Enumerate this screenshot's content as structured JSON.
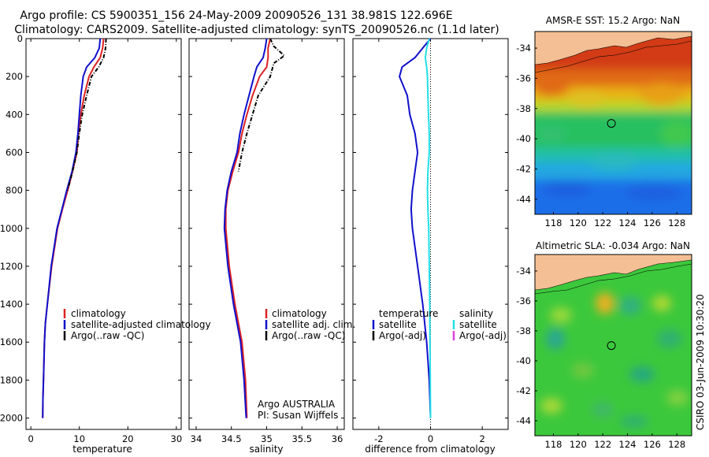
{
  "header": {
    "line1": "Argo profile: CS 5900351_156 24-May-2009 20090526_131 38.981S 122.696E",
    "line2": "Climatology: CARS2009. Satellite-adjusted climatology: synTS_20090526.nc (1.1d later)"
  },
  "colors": {
    "climatology": "#dd2222",
    "satellite": "#1010cc",
    "argo": "#000000",
    "satellite_salinity": "#22e0e8",
    "argo_salinity_adj": "#e040e0",
    "land": "#f4bf95"
  },
  "chart_data": [
    {
      "type": "line",
      "id": "temperature-profile",
      "xlabel": "temperature",
      "ylabel": "",
      "xlim": [
        -1,
        31
      ],
      "ylim": [
        2060,
        0
      ],
      "xticks": [
        0,
        10,
        20,
        30
      ],
      "yticks": [
        0,
        200,
        400,
        600,
        800,
        1000,
        1200,
        1400,
        1600,
        1800,
        2000
      ],
      "legend": [
        "climatology",
        "satellite-adjusted climatology",
        "Argo(..raw -QC)"
      ],
      "legend_position": "bottom-right",
      "series": [
        {
          "name": "climatology",
          "color_key": "climatology",
          "dash": false,
          "x": [
            15.0,
            14.8,
            14.3,
            13.0,
            12.0,
            11.0,
            10.3,
            9.8,
            9.5,
            8.6,
            7.6,
            6.5,
            5.5,
            4.3,
            3.4,
            3.0,
            2.8,
            2.6,
            2.5,
            2.45
          ],
          "y": [
            0,
            50,
            100,
            150,
            200,
            300,
            400,
            500,
            600,
            700,
            800,
            900,
            1000,
            1200,
            1400,
            1500,
            1600,
            1800,
            1900,
            2000
          ]
        },
        {
          "name": "satellite-adjusted climatology",
          "color_key": "satellite",
          "dash": false,
          "x": [
            14.3,
            14.1,
            13.2,
            11.5,
            10.8,
            10.3,
            10.0,
            9.7,
            9.3,
            8.5,
            7.4,
            6.4,
            5.4,
            4.2,
            3.4,
            3.0,
            2.8,
            2.6,
            2.5,
            2.45
          ],
          "y": [
            0,
            50,
            100,
            150,
            200,
            300,
            400,
            500,
            600,
            700,
            800,
            900,
            1000,
            1200,
            1400,
            1500,
            1600,
            1800,
            1900,
            2000
          ]
        },
        {
          "name": "Argo(..raw -QC)",
          "color_key": "argo",
          "dash": true,
          "x": [
            15.5,
            15.4,
            15.0,
            14.0,
            12.5,
            11.5,
            10.6,
            10.0,
            9.5,
            8.6,
            7.6
          ],
          "y": [
            0,
            50,
            100,
            150,
            200,
            300,
            400,
            500,
            600,
            700,
            800
          ]
        }
      ]
    },
    {
      "type": "line",
      "id": "salinity-profile",
      "xlabel": "salinity",
      "xlim": [
        33.9,
        36.1
      ],
      "ylim": [
        2060,
        0
      ],
      "xticks": [
        34,
        34.5,
        35,
        35.5,
        36
      ],
      "legend": [
        "climatology",
        "satellite adj. clim.",
        "Argo(..raw -QC)"
      ],
      "legend_position": "bottom-right",
      "annotations": [
        "Argo AUSTRALIA",
        "PI: Susan Wijffels"
      ],
      "series": [
        {
          "name": "climatology",
          "color_key": "climatology",
          "dash": false,
          "x": [
            35.05,
            35.02,
            35.02,
            35.0,
            34.9,
            34.8,
            34.72,
            34.65,
            34.6,
            34.52,
            34.45,
            34.42,
            34.42,
            34.47,
            34.55,
            34.6,
            34.65,
            34.7,
            34.72
          ],
          "y": [
            0,
            50,
            100,
            150,
            200,
            300,
            400,
            500,
            600,
            700,
            800,
            900,
            1000,
            1200,
            1400,
            1500,
            1600,
            1800,
            2000
          ]
        },
        {
          "name": "satellite adj. clim.",
          "color_key": "satellite",
          "dash": false,
          "x": [
            35.0,
            34.98,
            34.95,
            34.86,
            34.82,
            34.75,
            34.68,
            34.62,
            34.58,
            34.5,
            34.44,
            34.41,
            34.4,
            34.45,
            34.53,
            34.58,
            34.63,
            34.68,
            34.71
          ],
          "y": [
            0,
            50,
            100,
            150,
            200,
            300,
            400,
            500,
            600,
            700,
            800,
            900,
            1000,
            1200,
            1400,
            1500,
            1600,
            1800,
            2000
          ]
        },
        {
          "name": "Argo(..raw -QC)",
          "color_key": "argo",
          "dash": true,
          "x": [
            35.05,
            35.1,
            35.25,
            35.1,
            35.05,
            34.88,
            34.8,
            34.72,
            34.65,
            34.6
          ],
          "y": [
            0,
            40,
            90,
            130,
            200,
            300,
            400,
            500,
            600,
            700
          ]
        }
      ]
    },
    {
      "type": "line",
      "id": "difference-profile",
      "xlabel": "difference from climatology",
      "xlim": [
        -3.0,
        3.0
      ],
      "ylim": [
        2060,
        0
      ],
      "xticks": [
        -2,
        0,
        2
      ],
      "legend_temperature_header": "temperature",
      "legend_salinity_header": "salinity",
      "legend": [
        "satellite",
        "Argo(-adj)",
        "satellite",
        "Argo(-adj)"
      ],
      "legend_position": "bottom",
      "series": [
        {
          "name": "satellite",
          "group": "temperature",
          "color_key": "satellite",
          "dash": false,
          "x": [
            0.0,
            -0.3,
            -0.6,
            -1.1,
            -1.2,
            -0.9,
            -0.8,
            -0.6,
            -0.5,
            -0.6,
            -0.7,
            -0.75,
            -0.7,
            -0.5,
            -0.3,
            -0.15,
            -0.05,
            0.0
          ],
          "y": [
            0,
            50,
            100,
            150,
            200,
            300,
            400,
            500,
            600,
            700,
            800,
            900,
            1000,
            1200,
            1400,
            1600,
            1800,
            2000
          ]
        },
        {
          "name": "Argo(-adj)",
          "group": "temperature",
          "color_key": "argo",
          "dash": false,
          "x": [],
          "y": []
        },
        {
          "name": "satellite",
          "group": "salinity",
          "color_key": "satellite_salinity",
          "dash": false,
          "x": [
            -0.05,
            -0.15,
            -0.2,
            -0.15,
            -0.12,
            -0.1,
            -0.08,
            -0.05,
            -0.05,
            -0.1,
            -0.12,
            -0.1,
            -0.07,
            -0.05,
            -0.03,
            -0.02,
            -0.01,
            0.0
          ],
          "y": [
            0,
            50,
            100,
            150,
            200,
            300,
            400,
            500,
            600,
            700,
            800,
            900,
            1000,
            1200,
            1400,
            1600,
            1800,
            2000
          ]
        },
        {
          "name": "Argo(-adj)",
          "group": "salinity",
          "color_key": "argo_salinity_adj",
          "dash": false,
          "x": [],
          "y": []
        }
      ],
      "zero_line": true
    },
    {
      "type": "heatmap",
      "id": "sst-map",
      "title": "AMSR-E SST: 15.2 Argo: NaN",
      "xticks": [
        118,
        120,
        122,
        124,
        126,
        128
      ],
      "yticks": [
        -34,
        -36,
        -38,
        -40,
        -42,
        -44
      ],
      "xlim": [
        116.5,
        129.2
      ],
      "ylim": [
        -45.0,
        -32.9
      ],
      "marker": {
        "lon": 122.696,
        "lat": -38.981
      }
    },
    {
      "type": "heatmap",
      "id": "sla-map",
      "title": "Altimetric SLA: -0.034 Argo: NaN",
      "xticks": [
        118,
        120,
        122,
        124,
        126,
        128
      ],
      "yticks": [
        -34,
        -36,
        -38,
        -40,
        -42,
        -44
      ],
      "xlim": [
        116.5,
        129.2
      ],
      "ylim": [
        -45.0,
        -32.9
      ],
      "marker": {
        "lon": 122.696,
        "lat": -38.981
      }
    }
  ],
  "side_label": "CSIRO 03-Jun-2009 10:30:20"
}
